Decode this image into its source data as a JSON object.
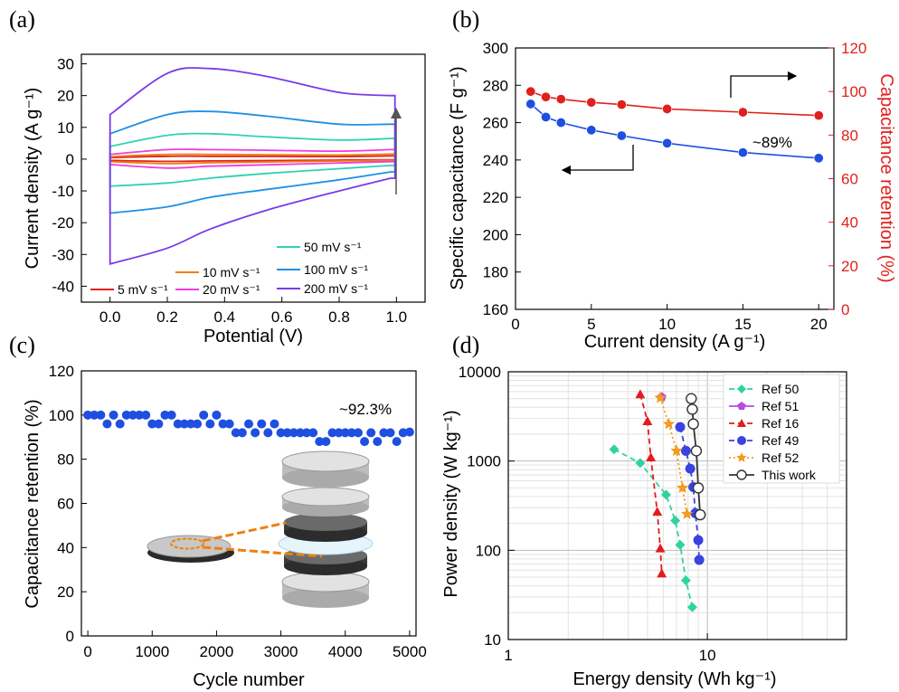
{
  "chart_data": [
    {
      "id": "a",
      "type": "line",
      "panel_label": "(a)",
      "xlabel": "Potential (V)",
      "ylabel": "Current density (A g⁻¹)",
      "xlim": [
        -0.1,
        1.1
      ],
      "ylim": [
        -45,
        33
      ],
      "xticks": [
        "0.0",
        "0.2",
        "0.4",
        "0.6",
        "0.8",
        "1.0"
      ],
      "yticks": [
        "-40",
        "-30",
        "-20",
        "-10",
        "0",
        "10",
        "20",
        "30"
      ],
      "annotation": "arrow pointing up: increasing scan rate",
      "legend_position": "bottom-right",
      "series": [
        {
          "name": "5 mV s⁻¹",
          "color": "#e0201c",
          "upper": [
            0.5,
            0.9,
            0.9,
            0.85,
            0.8,
            1.0
          ],
          "lower": [
            -0.4,
            -0.7,
            -0.55,
            -0.45,
            -0.3,
            -0.2
          ]
        },
        {
          "name": "10 mV s⁻¹",
          "color": "#f07f0f",
          "upper": [
            0.8,
            1.5,
            1.5,
            1.4,
            1.3,
            1.6
          ],
          "lower": [
            -0.8,
            -1.4,
            -1.1,
            -0.9,
            -0.6,
            -0.4
          ]
        },
        {
          "name": "20 mV s⁻¹",
          "color": "#f03ce0",
          "upper": [
            1.5,
            3.0,
            3.0,
            2.8,
            2.5,
            3.0
          ],
          "lower": [
            -1.7,
            -2.8,
            -2.2,
            -1.8,
            -1.2,
            -0.8
          ]
        },
        {
          "name": "50 mV s⁻¹",
          "color": "#2fd3b0",
          "upper": [
            4.0,
            7.5,
            8.0,
            7.0,
            6.0,
            6.5
          ],
          "lower": [
            -8.5,
            -7.5,
            -6.0,
            -4.5,
            -3.0,
            -2.0
          ]
        },
        {
          "name": "100 mV s⁻¹",
          "color": "#1e90e6",
          "upper": [
            8.0,
            14.0,
            15.0,
            13.5,
            11.0,
            11.0
          ],
          "lower": [
            -17.0,
            -15.0,
            -12.0,
            -9.5,
            -6.5,
            -4.0
          ]
        },
        {
          "name": "200 mV s⁻¹",
          "color": "#7b3ae8",
          "upper": [
            14.0,
            27.0,
            28.5,
            26.0,
            21.0,
            20.0
          ],
          "lower": [
            -33.0,
            -28.0,
            -22.0,
            -16.0,
            -10.0,
            -6.0
          ]
        }
      ],
      "x": [
        0.0,
        0.2,
        0.35,
        0.55,
        0.8,
        0.98
      ]
    },
    {
      "id": "b",
      "type": "line",
      "panel_label": "(b)",
      "xlabel": "Current density (A g⁻¹)",
      "ylabel": "Specific capacitance (F g⁻¹)",
      "ylabel_right": "Capacitance retention (%)",
      "xlim": [
        0,
        21
      ],
      "ylim": [
        160,
        300
      ],
      "ylim_right": [
        0,
        120
      ],
      "xticks": [
        "0",
        "5",
        "10",
        "15",
        "20"
      ],
      "yticks": [
        "160",
        "180",
        "200",
        "220",
        "240",
        "260",
        "280",
        "300"
      ],
      "yticks_right": [
        "0",
        "20",
        "40",
        "60",
        "80",
        "100",
        "120"
      ],
      "annotation": "~89%",
      "x": [
        1,
        2,
        3,
        5,
        7,
        10,
        15,
        20
      ],
      "series": [
        {
          "axis": "left",
          "color": "#1f4fe0",
          "values": [
            270,
            263,
            260,
            256,
            253,
            249,
            244,
            241
          ]
        },
        {
          "axis": "right",
          "color": "#e0201c",
          "values": [
            100,
            97.5,
            96.5,
            95,
            94,
            92,
            90.5,
            89
          ]
        }
      ]
    },
    {
      "id": "c",
      "type": "scatter",
      "panel_label": "(c)",
      "xlabel": "Cycle number",
      "ylabel": "Capacitance retention (%)",
      "xlim": [
        -100,
        5100
      ],
      "ylim": [
        0,
        120
      ],
      "xticks": [
        "0",
        "1000",
        "2000",
        "3000",
        "4000",
        "5000"
      ],
      "yticks": [
        "0",
        "20",
        "40",
        "60",
        "80",
        "100",
        "120"
      ],
      "annotation": "~92.3%",
      "series": [
        {
          "color": "#1f4fe0",
          "x": [
            0,
            100,
            200,
            300,
            400,
            500,
            600,
            700,
            800,
            900,
            1000,
            1100,
            1200,
            1300,
            1400,
            1500,
            1600,
            1700,
            1800,
            1900,
            2000,
            2100,
            2200,
            2300,
            2400,
            2500,
            2600,
            2700,
            2800,
            2900,
            3000,
            3100,
            3200,
            3300,
            3400,
            3500,
            3600,
            3700,
            3800,
            3900,
            4000,
            4100,
            4200,
            4300,
            4400,
            4500,
            4600,
            4700,
            4800,
            4900,
            5000
          ],
          "values": [
            100,
            100,
            100,
            96,
            100,
            96,
            100,
            100,
            100,
            100,
            96,
            96,
            100,
            100,
            96,
            96,
            96,
            96,
            100,
            96,
            100,
            96,
            96,
            92,
            92,
            96,
            92,
            96,
            92,
            96,
            92,
            92,
            92,
            92,
            92,
            92,
            88,
            88,
            92,
            92,
            92,
            92,
            92,
            88,
            92,
            88,
            92,
            92,
            88,
            92,
            92.3
          ]
        }
      ]
    },
    {
      "id": "d",
      "type": "line",
      "panel_label": "(d)",
      "xlabel": "Energy density (Wh kg⁻¹)",
      "ylabel": "Power density (W kg⁻¹)",
      "xscale": "log",
      "yscale": "log",
      "xlim": [
        1,
        50
      ],
      "ylim": [
        10,
        10000
      ],
      "xticks": [
        "1",
        "10"
      ],
      "yticks": [
        "10",
        "100",
        "1000",
        "10000"
      ],
      "grid": true,
      "legend_position": "top-right",
      "series": [
        {
          "name": "Ref 50",
          "color": "#2fd3a0",
          "marker": "diamond",
          "dash": "6,4",
          "x": [
            3.4,
            4.6,
            6.2,
            6.9,
            7.3,
            7.8,
            8.4
          ],
          "y": [
            1350,
            950,
            420,
            215,
            115,
            46,
            23
          ]
        },
        {
          "name": "Ref 51",
          "color": "#b84be8",
          "marker": "pentagon",
          "dash": "none",
          "x": [
            5.9
          ],
          "y": [
            5200
          ]
        },
        {
          "name": "Ref 16",
          "color": "#e41a1c",
          "marker": "triangle",
          "dash": "6,4",
          "x": [
            4.6,
            5.0,
            5.2,
            5.6,
            5.8,
            5.9
          ],
          "y": [
            5600,
            2800,
            1100,
            270,
            105,
            55
          ]
        },
        {
          "name": "Ref 49",
          "color": "#3a42e0",
          "marker": "circle",
          "dash": "6,4",
          "x": [
            7.3,
            7.8,
            8.2,
            8.5,
            8.7,
            9.0,
            9.1
          ],
          "y": [
            2400,
            1300,
            820,
            510,
            260,
            130,
            78
          ]
        },
        {
          "name": "Ref 52",
          "color": "#f39a20",
          "marker": "star",
          "dash": "2,3",
          "x": [
            5.8,
            6.4,
            7.0,
            7.5,
            7.9
          ],
          "y": [
            5100,
            2600,
            1300,
            500,
            255
          ]
        },
        {
          "name": "This work",
          "color": "#333333",
          "marker": "open-circle",
          "dash": "none",
          "x": [
            8.3,
            8.4,
            8.5,
            8.8,
            9.0,
            9.2
          ],
          "y": [
            5000,
            3800,
            2600,
            1300,
            500,
            250
          ]
        }
      ]
    }
  ]
}
